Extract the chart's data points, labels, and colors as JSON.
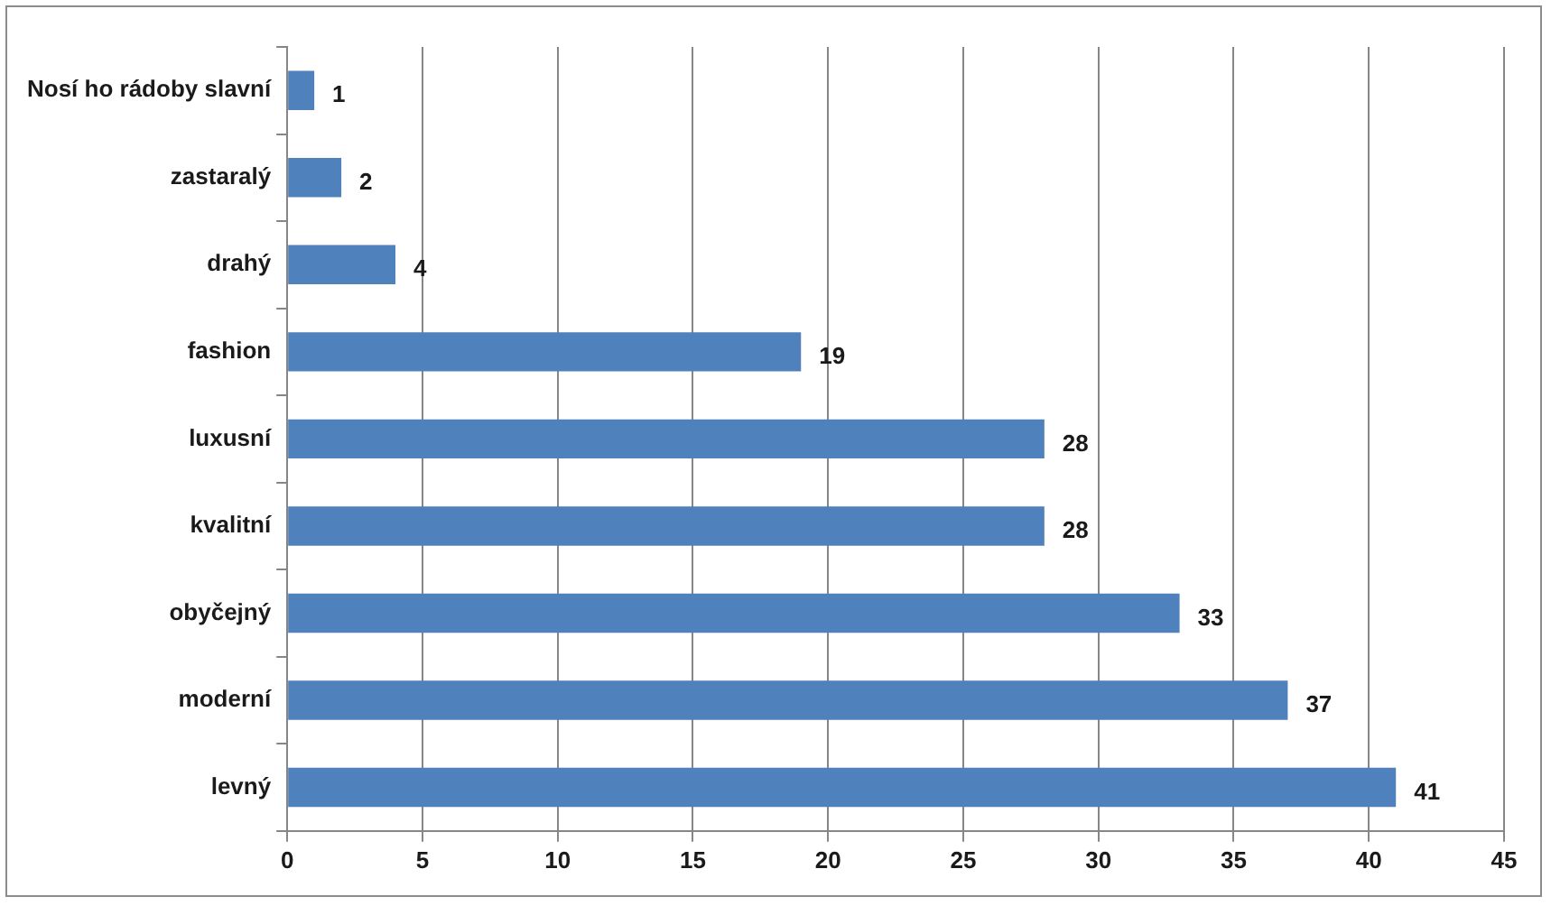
{
  "chart_data": {
    "type": "bar",
    "orientation": "horizontal",
    "categories": [
      "Nosí ho rádoby slavní",
      "zastaralý",
      "drahý",
      "fashion",
      "luxusní",
      "kvalitní",
      "obyčejný",
      "moderní",
      "levný"
    ],
    "values": [
      1,
      2,
      4,
      19,
      28,
      28,
      33,
      37,
      41
    ],
    "color": "#4f81bd",
    "xlim": [
      0,
      45
    ],
    "xticks": [
      0,
      5,
      10,
      15,
      20,
      25,
      30,
      35,
      40,
      45
    ],
    "grid": "x",
    "data_labels": true,
    "legend": false
  }
}
